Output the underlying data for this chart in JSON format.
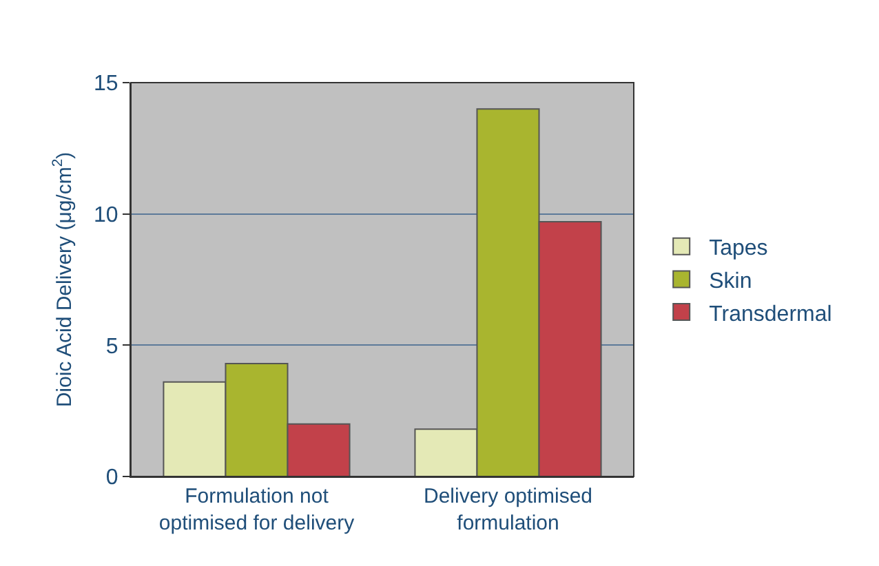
{
  "chart_data": {
    "type": "bar",
    "ylabel": "Dioic Acid Delivery (μg/cm$^{2}$)",
    "categories": [
      "Formulation not\noptimised for delivery",
      "Delivery optimised\nformulation"
    ],
    "series": [
      {
        "name": "Tapes",
        "color": "#e4e9b6",
        "values": [
          3.6,
          1.8
        ]
      },
      {
        "name": "Skin",
        "color": "#a9b52f",
        "values": [
          4.3,
          14.0
        ]
      },
      {
        "name": "Transdermal",
        "color": "#c2414a",
        "values": [
          2.0,
          9.7
        ]
      }
    ],
    "ylim": [
      0,
      15
    ],
    "yticks": [
      0,
      5,
      10,
      15
    ],
    "grid": "y",
    "legend": "right"
  }
}
